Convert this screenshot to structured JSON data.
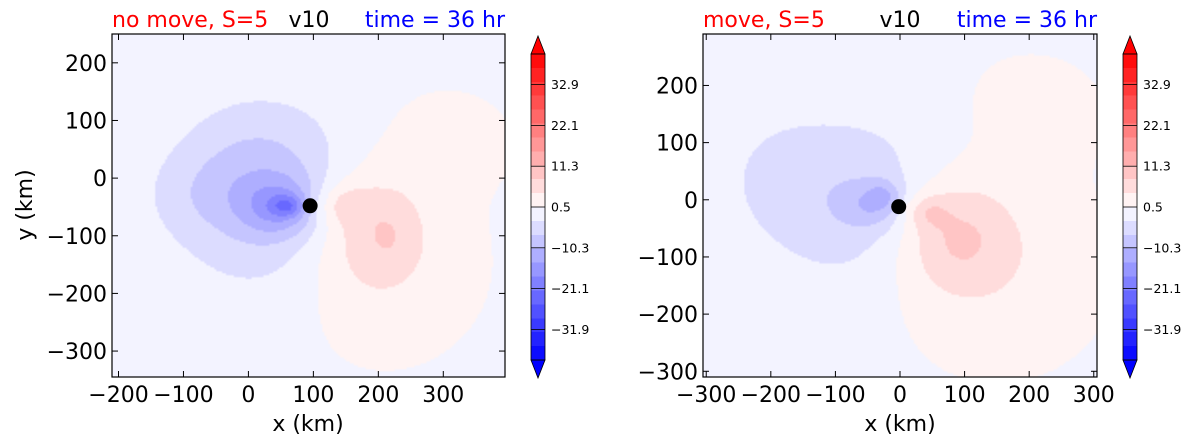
{
  "chart_data": [
    {
      "type": "heatmap",
      "variable": "v10",
      "title_left": "no move, S=5",
      "title_center": "v10",
      "title_right": "time = 36 hr",
      "xlabel": "x (km)",
      "ylabel": "y (km)",
      "xlim": [
        -210,
        395
      ],
      "ylim": [
        -345,
        250
      ],
      "xticks": [
        -200,
        -100,
        0,
        100,
        200,
        300
      ],
      "yticks": [
        -300,
        -200,
        -100,
        0,
        100,
        200
      ],
      "xtick_labels": [
        "−200",
        "−100",
        "0",
        "100",
        "200",
        "300"
      ],
      "ytick_labels": [
        "−300",
        "−200",
        "−100",
        "0",
        "100",
        "200"
      ],
      "center_marker": {
        "x": 95,
        "y": -48
      },
      "colorbar": {
        "levels": [
          -31.9,
          -21.1,
          -10.3,
          0.5,
          11.3,
          22.1,
          32.9
        ],
        "tick_labels": [
          "−31.9",
          "−21.1",
          "−10.3",
          "0.5",
          "11.3",
          "22.1",
          "32.9"
        ],
        "vmin": -40,
        "vmax": 41,
        "extend": "both",
        "cmap": "bwr"
      },
      "field_blobs": [
        {
          "x": 30,
          "y": -40,
          "sx": 150,
          "sy": 160,
          "amp": -7
        },
        {
          "x": 50,
          "y": -50,
          "sx": 60,
          "sy": 50,
          "amp": -9
        },
        {
          "x": 60,
          "y": -48,
          "sx": 25,
          "sy": 18,
          "amp": -8
        },
        {
          "x": 10,
          "y": 20,
          "sx": 110,
          "sy": 110,
          "amp": -3
        },
        {
          "x": -80,
          "y": -30,
          "sx": 80,
          "sy": 70,
          "amp": -2
        },
        {
          "x": 180,
          "y": -80,
          "sx": 90,
          "sy": 110,
          "amp": 6
        },
        {
          "x": 140,
          "y": -45,
          "sx": 45,
          "sy": 35,
          "amp": 5
        },
        {
          "x": 220,
          "y": -100,
          "sx": 40,
          "sy": 60,
          "amp": 2
        },
        {
          "x": 200,
          "y": -150,
          "sx": 130,
          "sy": 140,
          "amp": 3
        },
        {
          "x": 300,
          "y": 60,
          "sx": 90,
          "sy": 80,
          "amp": 2
        },
        {
          "x": 100,
          "y": -48,
          "sx": 12,
          "sy": 12,
          "amp": 2
        }
      ]
    },
    {
      "type": "heatmap",
      "variable": "v10",
      "title_left": "move, S=5",
      "title_center": "v10",
      "title_right": "time = 36 hr",
      "xlabel": "x (km)",
      "ylabel": "",
      "xlim": [
        -305,
        305
      ],
      "ylim": [
        -310,
        290
      ],
      "xticks": [
        -300,
        -200,
        -100,
        0,
        100,
        200,
        300
      ],
      "yticks": [
        -300,
        -200,
        -100,
        0,
        100,
        200
      ],
      "xtick_labels": [
        "−300",
        "−200",
        "−100",
        "0",
        "100",
        "200",
        "300"
      ],
      "ytick_labels": [
        "−300",
        "−200",
        "−100",
        "0",
        "100",
        "200"
      ],
      "center_marker": {
        "x": -2,
        "y": -12
      },
      "colorbar": {
        "levels": [
          -31.9,
          -21.1,
          -10.3,
          0.5,
          11.3,
          22.1,
          32.9
        ],
        "tick_labels": [
          "−31.9",
          "−21.1",
          "−10.3",
          "0.5",
          "11.3",
          "22.1",
          "32.9"
        ],
        "vmin": -40,
        "vmax": 41,
        "extend": "both",
        "cmap": "bwr"
      },
      "field_blobs": [
        {
          "x": -70,
          "y": 0,
          "sx": 150,
          "sy": 150,
          "amp": -6
        },
        {
          "x": -40,
          "y": -10,
          "sx": 50,
          "sy": 40,
          "amp": -6
        },
        {
          "x": -25,
          "y": 10,
          "sx": 25,
          "sy": 25,
          "amp": -4
        },
        {
          "x": -200,
          "y": 50,
          "sx": 100,
          "sy": 120,
          "amp": -2
        },
        {
          "x": 80,
          "y": -60,
          "sx": 90,
          "sy": 100,
          "amp": 8
        },
        {
          "x": 40,
          "y": -20,
          "sx": 35,
          "sy": 30,
          "amp": 5
        },
        {
          "x": 150,
          "y": -120,
          "sx": 140,
          "sy": 150,
          "amp": 3
        },
        {
          "x": 200,
          "y": 150,
          "sx": 110,
          "sy": 100,
          "amp": 1.5
        },
        {
          "x": 5,
          "y": -12,
          "sx": 10,
          "sy": 10,
          "amp": 2
        }
      ]
    }
  ]
}
